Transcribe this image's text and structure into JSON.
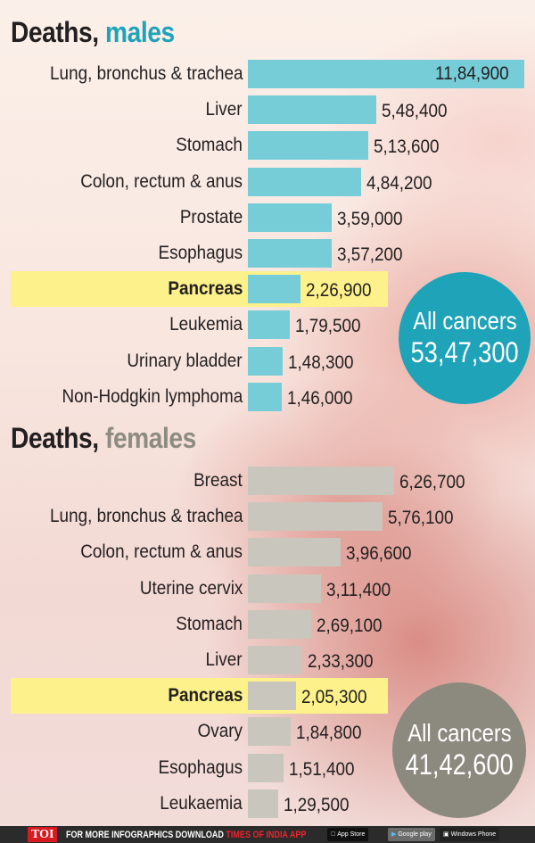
{
  "males": {
    "title_prefix": "Deaths,",
    "title_accent": "males",
    "accent_color": "#1ea3b8",
    "bar_color": "#76cdd8",
    "rows": [
      {
        "label": "Lung, bronchus & trachea",
        "value": "11,84,900"
      },
      {
        "label": "Liver",
        "value": "5,48,400"
      },
      {
        "label": "Stomach",
        "value": "5,13,600"
      },
      {
        "label": "Colon, rectum & anus",
        "value": "4,84,200"
      },
      {
        "label": "Prostate",
        "value": "3,59,000"
      },
      {
        "label": "Esophagus",
        "value": "3,57,200"
      },
      {
        "label": "Pancreas",
        "value": "2,26,900",
        "highlight": true
      },
      {
        "label": "Leukemia",
        "value": "1,79,500"
      },
      {
        "label": "Urinary bladder",
        "value": "1,48,300"
      },
      {
        "label": "Non-Hodgkin lymphoma",
        "value": "1,46,000"
      }
    ],
    "total_label": "All cancers",
    "total_value": "53,47,300"
  },
  "females": {
    "title_prefix": "Deaths,",
    "title_accent": "females",
    "accent_color": "#8d8b82",
    "bar_color": "#c9c6bd",
    "rows": [
      {
        "label": "Breast",
        "value": "6,26,700"
      },
      {
        "label": "Lung, bronchus & trachea",
        "value": "5,76,100"
      },
      {
        "label": "Colon, rectum & anus",
        "value": "3,96,600"
      },
      {
        "label": "Uterine cervix",
        "value": "3,11,400"
      },
      {
        "label": "Stomach",
        "value": "2,69,100"
      },
      {
        "label": "Liver",
        "value": "2,33,300"
      },
      {
        "label": "Pancreas",
        "value": "2,05,300",
        "highlight": true
      },
      {
        "label": "Ovary",
        "value": "1,84,800"
      },
      {
        "label": "Esophagus",
        "value": "1,51,400"
      },
      {
        "label": "Leukaemia",
        "value": "1,29,500"
      }
    ],
    "total_label": "All cancers",
    "total_value": "41,42,600"
  },
  "footer": {
    "brand": "TOI",
    "message": "FOR MORE  INFOGRAPHICS DOWNLOAD",
    "message_accent": "TIMES OF INDIA  APP",
    "stores": [
      "App Store",
      "Google play",
      "Windows Phone"
    ]
  },
  "chart_data": [
    {
      "type": "bar",
      "orientation": "horizontal",
      "title": "Deaths, males",
      "categories": [
        "Lung, bronchus & trachea",
        "Liver",
        "Stomach",
        "Colon, rectum & anus",
        "Prostate",
        "Esophagus",
        "Pancreas",
        "Leukemia",
        "Urinary bladder",
        "Non-Hodgkin lymphoma"
      ],
      "values": [
        1184900,
        548400,
        513600,
        484200,
        359000,
        357200,
        226900,
        179500,
        148300,
        146000
      ],
      "highlight": "Pancreas",
      "annotation": "All cancers 53,47,300",
      "total": 5347300,
      "xlabel": "",
      "ylabel": ""
    },
    {
      "type": "bar",
      "orientation": "horizontal",
      "title": "Deaths, females",
      "categories": [
        "Breast",
        "Lung, bronchus & trachea",
        "Colon, rectum & anus",
        "Uterine cervix",
        "Stomach",
        "Liver",
        "Pancreas",
        "Ovary",
        "Esophagus",
        "Leukaemia"
      ],
      "values": [
        626700,
        576100,
        396600,
        311400,
        269100,
        233300,
        205300,
        184800,
        151400,
        129500
      ],
      "highlight": "Pancreas",
      "annotation": "All cancers 41,42,600",
      "total": 4142600,
      "xlabel": "",
      "ylabel": ""
    }
  ]
}
